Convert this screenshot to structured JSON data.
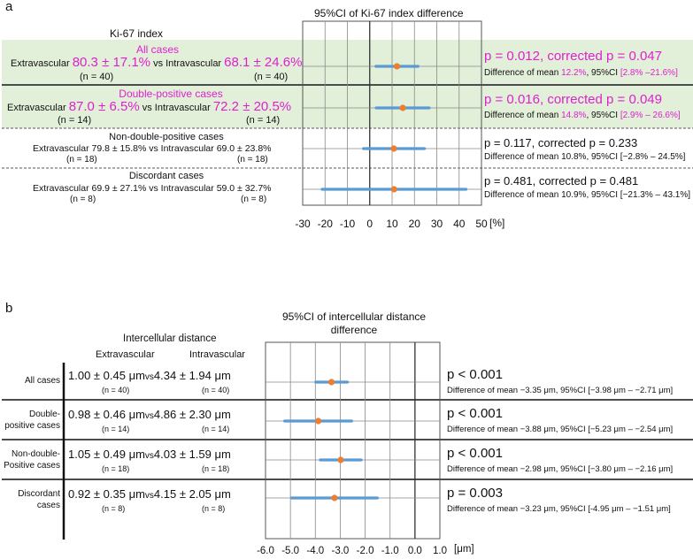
{
  "panel_a": {
    "letter": "a",
    "plot_title": "95%CI of Ki-67 index difference",
    "left_header": "Ki-67 index",
    "axis_unit": "[%]",
    "rows": [
      {
        "title": "All cases",
        "ext_label": "Extravascular",
        "ext_value": "80.3 ± 17.1%",
        "vs": "vs",
        "int_label": "Intravascular",
        "int_value": "68.1 ± 24.6%",
        "n_ext": "(n = 40)",
        "n_int": "(n = 40)",
        "p_text": "p = 0.012, ",
        "corr_text": "corrected p = 0.047",
        "diff_prefix": "Difference of mean ",
        "diff_value": "12.2%",
        "ci_prefix": ", 95%CI ",
        "ci_value": "[2.8% –21.6%]"
      },
      {
        "title": "Double-positive cases",
        "ext_label": "Extravascular",
        "ext_value": "87.0 ± 6.5%",
        "vs": "vs",
        "int_label": "Intravascular",
        "int_value": "72.2 ± 20.5%",
        "n_ext": "(n = 14)",
        "n_int": "(n = 14)",
        "p_text": "p = 0.016, ",
        "corr_text": "corrected p = 0.049",
        "diff_prefix": "Difference of mean ",
        "diff_value": "14.8%",
        "ci_prefix": ", 95%CI ",
        "ci_value": "[2.9% – 26.6%]"
      },
      {
        "title": "Non-double-positive cases",
        "line": "Extravascular 79.8 ± 15.8% vs Intravascular 69.0 ± 23.8%",
        "n_ext": "(n = 18)",
        "n_int": "(n = 18)",
        "p_text": "p = 0.117, ",
        "corr_text": "corrected p = 0.233",
        "diff_line": "Difference of mean 10.8%, 95%CI [−2.8% – 24.5%]"
      },
      {
        "title": "Discordant cases",
        "line": "Extravascular 69.9 ± 27.1% vs Intravascular 59.0 ± 32.7%",
        "n_ext": "(n = 8)",
        "n_int": "(n = 8)",
        "p_text": "p = 0.481, ",
        "corr_text": "corrected p = 0.481",
        "diff_line": "Difference of mean 10.9%, 95%CI [−21.3% – 43.1%]"
      }
    ]
  },
  "panel_b": {
    "letter": "b",
    "plot_title_1": "95%CI of intercellular distance",
    "plot_title_2": "difference",
    "left_header": "Intercellular distance",
    "col_ext": "Extravascular",
    "col_int": "Intravascular",
    "axis_unit": "[μm]",
    "rows": [
      {
        "title": "All cases",
        "ext_value": "1.00 ± 0.45 μm",
        "vs": "vs",
        "int_value": "4.34 ± 1.94 μm",
        "n_ext": "(n = 40)",
        "n_int": "(n = 40)",
        "p_text": "p < 0.001",
        "diff_line": "Difference of mean −3.35 μm, 95%CI [−3.98 μm – −2.71 μm]"
      },
      {
        "title_1": "Double-",
        "title_2": "positive cases",
        "ext_value": "0.98 ± 0.46 μm",
        "vs": "vs",
        "int_value": "4.86 ± 2.30 μm",
        "n_ext": "(n = 14)",
        "n_int": "(n = 14)",
        "p_text": "p < 0.001",
        "diff_line": "Difference of mean −3.88 μm, 95%CI [−5.23 μm – −2.54 μm]"
      },
      {
        "title_1": "Non-double-",
        "title_2": "Positive cases",
        "ext_value": "1.05 ± 0.49 μm",
        "vs": "vs",
        "int_value": "4.03 ± 1.59 μm",
        "n_ext": "(n = 18)",
        "n_int": "(n = 18)",
        "p_text": "p < 0.001",
        "diff_line": "Difference of mean −2.98 μm, 95%CI [−3.80 μm – −2.16 μm]"
      },
      {
        "title_1": "Discordant",
        "title_2": "cases",
        "ext_value": "0.92 ± 0.35 μm",
        "vs": "vs",
        "int_value": "4.15 ± 2.05 μm",
        "n_ext": "(n = 8)",
        "n_int": "(n = 8)",
        "p_text": "p = 0.003",
        "diff_line": "Difference of mean −3.23 μm, 95%CI [-4.95 μm – −1.51 μm]"
      }
    ]
  },
  "colors": {
    "magenta": "#e020d0",
    "highlight": "#e2efd9",
    "ci_line": "#5b9bd5",
    "point": "#ed7d31"
  },
  "chart_data": [
    {
      "type": "forest",
      "title": "95%CI of Ki-67 index difference",
      "xlabel": "[%]",
      "xlim": [
        -30,
        50
      ],
      "xticks": [
        -30,
        -20,
        -10,
        0,
        10,
        20,
        30,
        40,
        50
      ],
      "xtick_labels": [
        "-30",
        "-20",
        "-10",
        "0",
        "10",
        "20",
        "30",
        "40",
        "50"
      ],
      "series": [
        {
          "name": "All cases",
          "mean": 12.2,
          "lower": 2.8,
          "upper": 21.6
        },
        {
          "name": "Double-positive cases",
          "mean": 14.8,
          "lower": 2.9,
          "upper": 26.6
        },
        {
          "name": "Non-double-positive cases",
          "mean": 10.8,
          "lower": -2.8,
          "upper": 24.5
        },
        {
          "name": "Discordant cases",
          "mean": 10.9,
          "lower": -21.3,
          "upper": 43.1
        }
      ]
    },
    {
      "type": "forest",
      "title": "95%CI of intercellular distance difference",
      "xlabel": "[μm]",
      "xlim": [
        -6.0,
        1.0
      ],
      "xticks": [
        -6.0,
        -5.0,
        -4.0,
        -3.0,
        -2.0,
        -1.0,
        0.0,
        1.0
      ],
      "xtick_labels": [
        "-6.0",
        "-5.0",
        "-4.0",
        "-3.0",
        "-2.0",
        "-1.0",
        "0.0",
        "1.0"
      ],
      "series": [
        {
          "name": "All cases",
          "mean": -3.35,
          "lower": -3.98,
          "upper": -2.71
        },
        {
          "name": "Double-positive cases",
          "mean": -3.88,
          "lower": -5.23,
          "upper": -2.54
        },
        {
          "name": "Non-double-Positive cases",
          "mean": -2.98,
          "lower": -3.8,
          "upper": -2.16
        },
        {
          "name": "Discordant cases",
          "mean": -3.23,
          "lower": -4.95,
          "upper": -1.51
        }
      ]
    }
  ]
}
